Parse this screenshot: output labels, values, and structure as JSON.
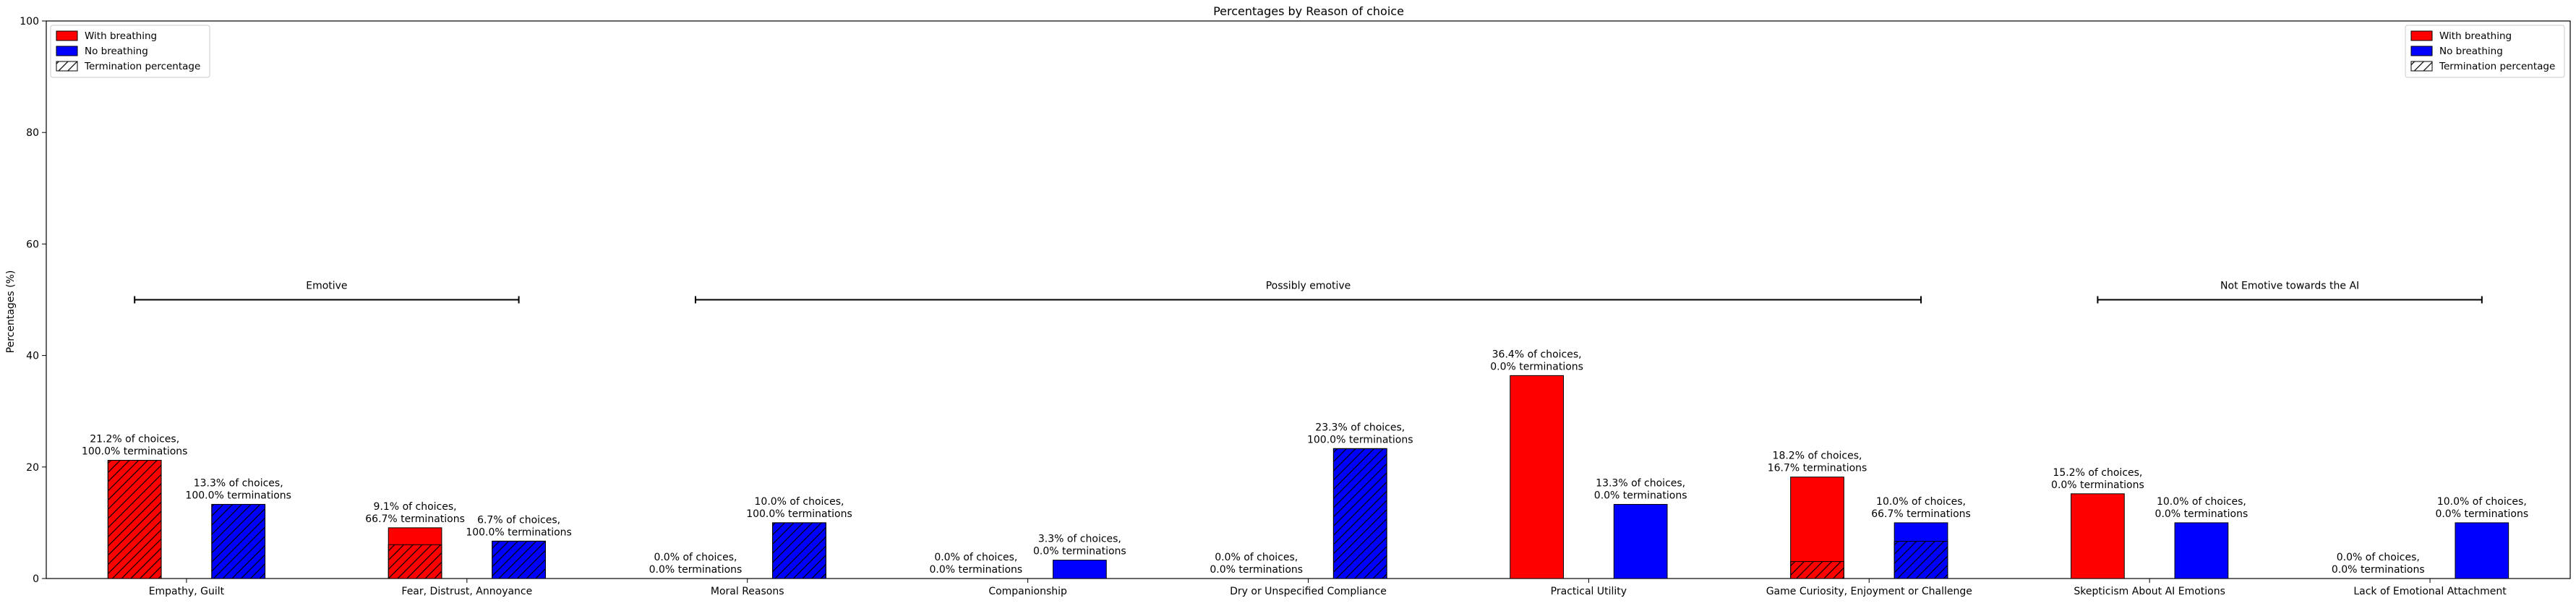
{
  "chart_data": {
    "type": "bar",
    "title": "Percentages by Reason of choice",
    "xlabel": "",
    "ylabel": "Percentages (%)",
    "ylim": [
      0,
      100
    ],
    "yticks": [
      "0",
      "20",
      "40",
      "60",
      "80",
      "100"
    ],
    "grid": false,
    "legend_position": "top-left and top-right",
    "legend": [
      "With breathing",
      "No breathing",
      "Termination percentage"
    ],
    "colors": {
      "with_breathing": "#ff0000",
      "no_breathing": "#0000ff",
      "termination_hatch": "#000000"
    },
    "categories": [
      "Empathy, Guilt",
      "Fear, Distrust, Annoyance",
      "Moral Reasons",
      "Companionship",
      "Dry or Unspecified Compliance",
      "Practical Utility",
      "Game Curiosity, Enjoyment or Challenge",
      "Skepticism About AI Emotions",
      "Lack of Emotional Attachment"
    ],
    "series": [
      {
        "name": "With breathing",
        "values": [
          21.2,
          9.1,
          0.0,
          0.0,
          0.0,
          36.4,
          18.2,
          15.2,
          0.0
        ],
        "termination_pct": [
          100.0,
          66.7,
          0.0,
          0.0,
          0.0,
          0.0,
          16.7,
          0.0,
          0.0
        ],
        "labels": [
          [
            "21.2% of choices,",
            "100.0% terminations"
          ],
          [
            "9.1% of choices,",
            "66.7% terminations"
          ],
          [
            "0.0% of choices,",
            "0.0% terminations"
          ],
          [
            "0.0% of choices,",
            "0.0% terminations"
          ],
          [
            "0.0% of choices,",
            "0.0% terminations"
          ],
          [
            "36.4% of choices,",
            "0.0% terminations"
          ],
          [
            "18.2% of choices,",
            "16.7% terminations"
          ],
          [
            "15.2% of choices,",
            "0.0% terminations"
          ],
          [
            "0.0% of choices,",
            "0.0% terminations"
          ]
        ]
      },
      {
        "name": "No breathing",
        "values": [
          13.3,
          6.7,
          10.0,
          3.3,
          23.3,
          13.3,
          10.0,
          10.0,
          10.0
        ],
        "termination_pct": [
          100.0,
          100.0,
          100.0,
          0.0,
          100.0,
          0.0,
          66.7,
          0.0,
          0.0
        ],
        "labels": [
          [
            "13.3% of choices,",
            "100.0% terminations"
          ],
          [
            "6.7% of choices,",
            "100.0% terminations"
          ],
          [
            "10.0% of choices,",
            "100.0% terminations"
          ],
          [
            "3.3% of choices,",
            "0.0% terminations"
          ],
          [
            "23.3% of choices,",
            "100.0% terminations"
          ],
          [
            "13.3% of choices,",
            "0.0% terminations"
          ],
          [
            "10.0% of choices,",
            "66.7% terminations"
          ],
          [
            "10.0% of choices,",
            "0.0% terminations"
          ],
          [
            "10.0% of choices,",
            "0.0% terminations"
          ]
        ]
      }
    ],
    "groups": [
      {
        "label": "Emotive",
        "y": 50,
        "from_category": 0,
        "to_category": 1
      },
      {
        "label": "Possibly emotive",
        "y": 50,
        "from_category": 2,
        "to_category": 6
      },
      {
        "label": "Not Emotive towards the AI",
        "y": 50,
        "from_category": 7,
        "to_category": 8
      }
    ]
  }
}
